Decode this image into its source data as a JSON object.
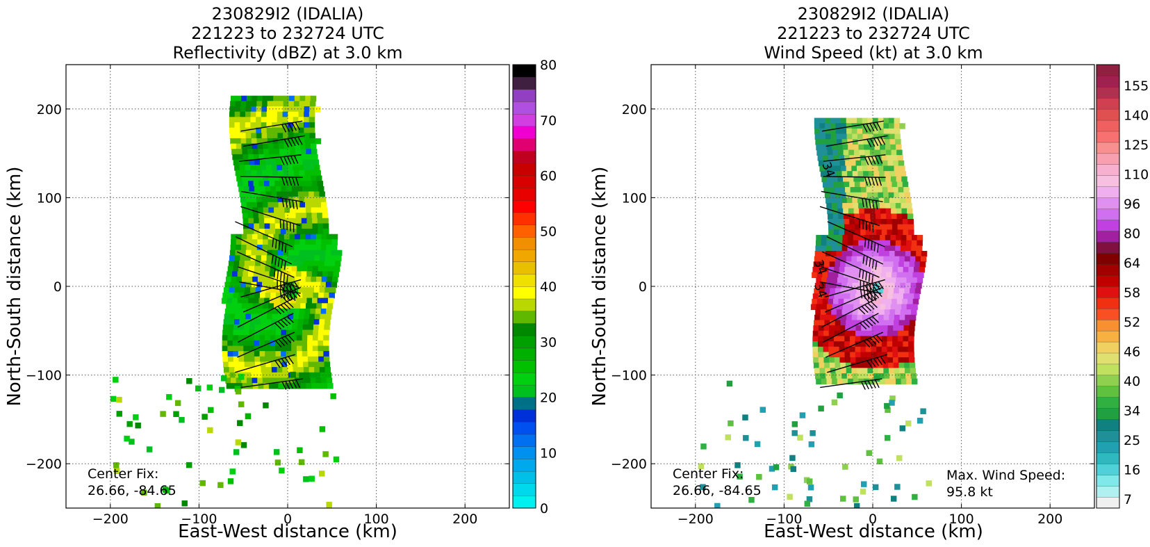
{
  "chart_data": [
    {
      "type": "heatmap",
      "title": [
        "230829I2 (IDALIA)",
        "221223 to 232724 UTC",
        "Reflectivity (dBZ) at 3.0 km"
      ],
      "xlabel": "East-West distance (km)",
      "ylabel": "North-South distance (km)",
      "xlim": [
        -250,
        250
      ],
      "ylim": [
        -250,
        250
      ],
      "xticks": [
        -200,
        -100,
        0,
        100,
        200
      ],
      "yticks": [
        -200,
        -100,
        0,
        100,
        200
      ],
      "grid": true,
      "annotations": {
        "center_fix": [
          "Center Fix:",
          "26.66, -84.65"
        ]
      },
      "colorbar": {
        "ticks": [
          0,
          10,
          20,
          30,
          40,
          50,
          60,
          70,
          80
        ],
        "levels": [
          0,
          2.5,
          5,
          7.5,
          10,
          12.5,
          15,
          17.5,
          20,
          22.5,
          25,
          27.5,
          30,
          32.5,
          35,
          37.5,
          40,
          42.5,
          45,
          47.5,
          50,
          52.5,
          55,
          57.5,
          60,
          62.5,
          65,
          67.5,
          70,
          72.5,
          75,
          77.5,
          80
        ],
        "colors": [
          "#00f0f0",
          "#00d8ec",
          "#00c0e8",
          "#00a8ec",
          "#0090f0",
          "#0070f0",
          "#0050f0",
          "#0030d8",
          "#007088",
          "#00c020",
          "#00d010",
          "#00c000",
          "#00b000",
          "#00a000",
          "#008800",
          "#60b800",
          "#b8d800",
          "#ffff00",
          "#f0e000",
          "#e8c000",
          "#f0a800",
          "#f09000",
          "#ff6000",
          "#ff3000",
          "#ff0000",
          "#e80000",
          "#d80000",
          "#c80000",
          "#c00020",
          "#e00070",
          "#f000d0",
          "#d040e0",
          "#b050e0",
          "#9040c0",
          "#402040",
          "#000000"
        ]
      },
      "barbs_description": "wind barbs overlaid",
      "approx_fields": {
        "echo_region_x_km": [
          -75,
          55
        ],
        "echo_region_y_km": [
          -250,
          215
        ],
        "eye_center_km": [
          0,
          0
        ]
      }
    },
    {
      "type": "heatmap",
      "title": [
        "230829I2 (IDALIA)",
        "221223 to 232724 UTC",
        "Wind Speed (kt) at 3.0 km"
      ],
      "xlabel": "East-West distance (km)",
      "ylabel": "North-South distance (km)",
      "xlim": [
        -250,
        250
      ],
      "ylim": [
        -250,
        250
      ],
      "xticks": [
        -200,
        -100,
        0,
        100,
        200
      ],
      "yticks": [
        -200,
        -100,
        0,
        100,
        200
      ],
      "grid": true,
      "annotations": {
        "center_fix": [
          "Center Fix:",
          "26.66, -84.65"
        ],
        "max_wind": [
          "Max. Wind Speed:",
          "95.8 kt"
        ],
        "contour_labels": [
          "34",
          "34",
          "34"
        ]
      },
      "colorbar": {
        "ticks": [
          7,
          16,
          25,
          34,
          40,
          46,
          52,
          58,
          64,
          80,
          96,
          110,
          125,
          140,
          155
        ],
        "colors": [
          "#f0f0f0",
          "#b0f0f0",
          "#80e8e8",
          "#50d0d8",
          "#30b8c0",
          "#20a0b0",
          "#209098",
          "#108080",
          "#20a040",
          "#30b040",
          "#60c040",
          "#90d050",
          "#c0e060",
          "#e0e070",
          "#f0d060",
          "#f8b040",
          "#f89030",
          "#f85020",
          "#f03010",
          "#e01010",
          "#c00000",
          "#a00000",
          "#800000",
          "#801040",
          "#a020a0",
          "#c040e0",
          "#d070f0",
          "#e090f0",
          "#f0b0f0",
          "#f8c0e0",
          "#f8b0d0",
          "#f8a0b0",
          "#f89090",
          "#f87070",
          "#f06060",
          "#e05050",
          "#d04050",
          "#b03050",
          "#a02050",
          "#902040"
        ]
      },
      "approx_fields": {
        "echo_region_x_km": [
          -70,
          55
        ],
        "echo_region_y_km": [
          -230,
          190
        ],
        "eye_center_km": [
          0,
          0
        ],
        "max_wind_kt": 95.8
      }
    }
  ]
}
